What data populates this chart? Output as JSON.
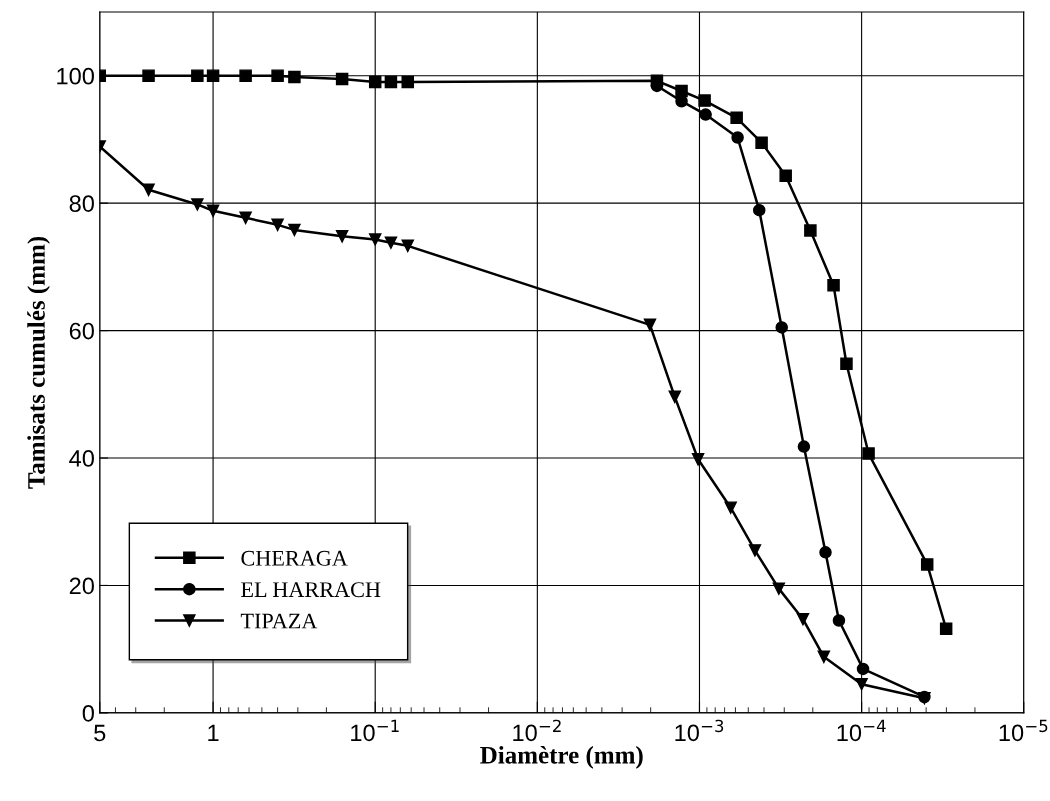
{
  "chart_data": {
    "type": "line",
    "xlabel": "Diamètre (mm)",
    "ylabel": "Tamisats cumulés (mm)",
    "log": "x",
    "xlim": [
      5,
      1e-05
    ],
    "ylim": [
      0,
      110
    ],
    "xticks": [
      5,
      1,
      {
        "value": 0.1,
        "label": "10$^{−1}$"
      },
      {
        "value": 0.01,
        "label": "10$^{−2}$"
      },
      {
        "value": 0.001,
        "label": "10$^{−3}$"
      },
      {
        "value": 0.0001,
        "label": "10$^{−4}$"
      },
      {
        "value": 1e-05,
        "label": "10$^{−5}$"
      }
    ],
    "yticks": [
      0,
      20,
      40,
      60,
      80,
      100
    ],
    "grid": true,
    "legend": "bottom left",
    "line_style": "solid",
    "series": [
      {
        "name": "CHERAGA",
        "color": "#000000",
        "marker": "square",
        "x": [
          5,
          2.5,
          1.25,
          1,
          0.63,
          0.4,
          0.315,
          0.16,
          0.1,
          0.08,
          0.063,
          0.00183,
          0.00129,
          0.00093,
          0.00059,
          0.000414,
          0.000294,
          0.000207,
          0.000149,
          0.000124,
          9.06e-05,
          3.94e-05,
          3.01e-05
        ],
        "values": [
          100,
          100,
          100,
          100,
          100,
          100,
          99.8,
          99.5,
          99,
          99,
          99,
          99.2,
          97.6,
          96.1,
          93.4,
          89.5,
          84.3,
          75.7,
          67.1,
          54.8,
          40.7,
          23.3,
          13.2
        ]
      },
      {
        "name": "EL HARRACH",
        "color": "#000000",
        "marker": "circle",
        "x": [
          0.00183,
          0.00129,
          0.000916,
          0.000582,
          0.000428,
          0.000311,
          0.000227,
          0.000167,
          0.000138,
          9.8e-05,
          4.1e-05
        ],
        "values": [
          98.4,
          96.0,
          93.9,
          90.3,
          78.9,
          60.5,
          41.8,
          25.2,
          14.5,
          6.9,
          2.5
        ]
      },
      {
        "name": "TIPAZA",
        "color": "#000000",
        "marker": "triangle",
        "x": [
          5,
          2.5,
          1.25,
          1,
          0.63,
          0.4,
          0.315,
          0.16,
          0.1,
          0.08,
          0.063,
          0.00202,
          0.00142,
          0.00102,
          0.000642,
          0.000455,
          0.000324,
          0.00023,
          0.000171,
          0.0001,
          4.1e-05
        ],
        "values": [
          88.9,
          82.1,
          79.8,
          78.8,
          77.7,
          76.6,
          75.8,
          74.8,
          74.3,
          73.8,
          73.3,
          60.9,
          49.6,
          39.8,
          32.2,
          25.5,
          19.5,
          14.7,
          8.8,
          4.5,
          2.3
        ]
      }
    ]
  }
}
